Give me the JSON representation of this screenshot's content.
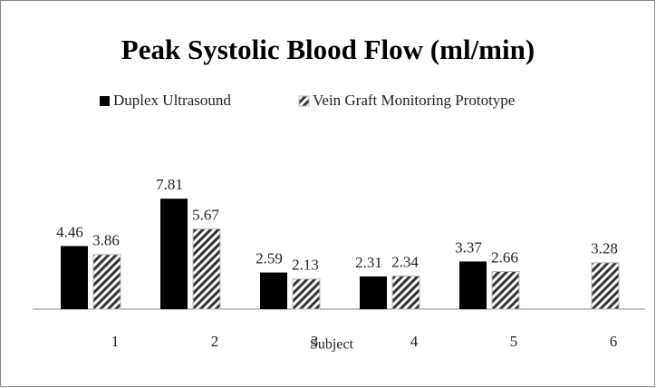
{
  "chart_data": {
    "type": "bar",
    "title": "Peak Systolic Blood Flow (ml/min)",
    "x_label": "Subject",
    "categories": [
      "1",
      "2",
      "3",
      "4",
      "5",
      "6"
    ],
    "series": [
      {
        "name": "Duplex Ultrasound",
        "color": "#000000",
        "values": [
          4.46,
          7.81,
          2.59,
          2.31,
          3.37,
          null
        ]
      },
      {
        "name": "Vein Graft Monitoring Prototype",
        "color": "hatched",
        "values": [
          3.86,
          5.67,
          2.13,
          2.34,
          2.66,
          3.28
        ]
      }
    ],
    "ylim": [
      0,
      10
    ],
    "legend": "top"
  }
}
